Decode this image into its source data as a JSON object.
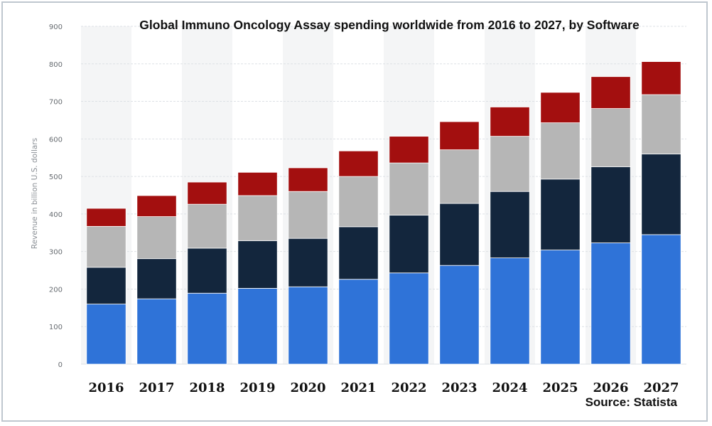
{
  "chart_data": {
    "type": "bar",
    "stacked": true,
    "title": "Global Immuno Oncology Assay spending worldwide from 2016 to 2027, by Software",
    "ylabel": "Revenue in billion U.S. dollars",
    "xlabel": "",
    "source": "Source: Statista",
    "ylim": [
      0,
      900
    ],
    "yticks": [
      0,
      100,
      200,
      300,
      400,
      500,
      600,
      700,
      800,
      900
    ],
    "grid": true,
    "categories": [
      "2016",
      "2017",
      "2018",
      "2019",
      "2020",
      "2021",
      "2022",
      "2023",
      "2024",
      "2025",
      "2026",
      "2027"
    ],
    "series": [
      {
        "color": "#2f73d8",
        "values": [
          160,
          174,
          189,
          202,
          206,
          226,
          243,
          263,
          283,
          304,
          323,
          345
        ]
      },
      {
        "color": "#13263d",
        "values": [
          98,
          107,
          120,
          127,
          129,
          140,
          154,
          165,
          177,
          189,
          203,
          215
        ]
      },
      {
        "color": "#b6b6b6",
        "values": [
          109,
          112,
          117,
          120,
          125,
          134,
          139,
          143,
          147,
          150,
          155,
          158
        ]
      },
      {
        "color": "#a30f0f",
        "values": [
          48,
          56,
          59,
          62,
          63,
          68,
          71,
          75,
          78,
          81,
          85,
          88
        ]
      }
    ]
  }
}
